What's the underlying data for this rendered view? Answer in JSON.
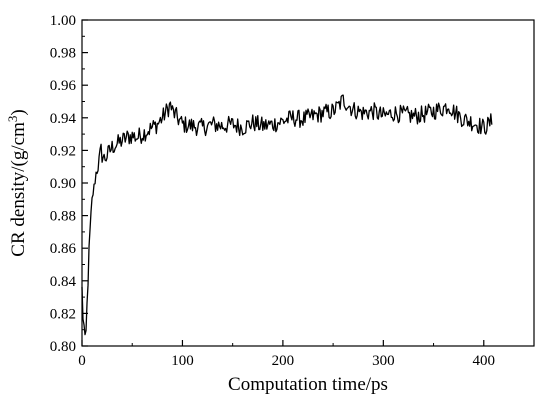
{
  "chart_data": {
    "type": "line",
    "title": "",
    "xlabel": "Computation time/ps",
    "ylabel_main": "CR density/(g/cm",
    "ylabel_sup": "3",
    "ylabel_close": ")",
    "xlim": [
      0,
      450
    ],
    "ylim": [
      0.8,
      1.0
    ],
    "x_ticks": [
      0,
      100,
      200,
      300,
      400
    ],
    "x_tick_labels": [
      "0",
      "100",
      "200",
      "300",
      "400"
    ],
    "y_ticks": [
      0.8,
      0.82,
      0.84,
      0.86,
      0.88,
      0.9,
      0.92,
      0.94,
      0.96,
      0.98,
      1.0
    ],
    "y_tick_labels": [
      "0.80",
      "0.82",
      "0.84",
      "0.86",
      "0.88",
      "0.90",
      "0.92",
      "0.94",
      "0.96",
      "0.98",
      "1.00"
    ],
    "grid": false,
    "series": [
      {
        "color": "#000000",
        "x": [
          0,
          1,
          2,
          3,
          4,
          5,
          6,
          7,
          8,
          9,
          10,
          11,
          12,
          13,
          14,
          15,
          16,
          17,
          18,
          19,
          20,
          22,
          24,
          26,
          28,
          30,
          35,
          40,
          45,
          50,
          55,
          60,
          65,
          70,
          75,
          80,
          85,
          88,
          90,
          95,
          100,
          110,
          120,
          130,
          140,
          150,
          160,
          170,
          180,
          190,
          200,
          210,
          220,
          230,
          240,
          250,
          255,
          260,
          265,
          270,
          280,
          290,
          300,
          310,
          320,
          330,
          340,
          350,
          360,
          365,
          370,
          380,
          390,
          400,
          405,
          408
        ],
        "y": [
          0.835,
          0.818,
          0.812,
          0.803,
          0.808,
          0.825,
          0.84,
          0.858,
          0.87,
          0.88,
          0.889,
          0.894,
          0.897,
          0.902,
          0.906,
          0.908,
          0.91,
          0.914,
          0.918,
          0.921,
          0.917,
          0.915,
          0.916,
          0.918,
          0.92,
          0.922,
          0.924,
          0.926,
          0.928,
          0.929,
          0.928,
          0.93,
          0.932,
          0.934,
          0.936,
          0.94,
          0.945,
          0.948,
          0.944,
          0.94,
          0.936,
          0.935,
          0.934,
          0.936,
          0.935,
          0.936,
          0.934,
          0.937,
          0.935,
          0.936,
          0.938,
          0.94,
          0.939,
          0.941,
          0.943,
          0.944,
          0.947,
          0.951,
          0.948,
          0.945,
          0.943,
          0.944,
          0.941,
          0.943,
          0.942,
          0.941,
          0.942,
          0.944,
          0.946,
          0.948,
          0.944,
          0.939,
          0.937,
          0.934,
          0.936,
          0.938
        ]
      }
    ]
  }
}
